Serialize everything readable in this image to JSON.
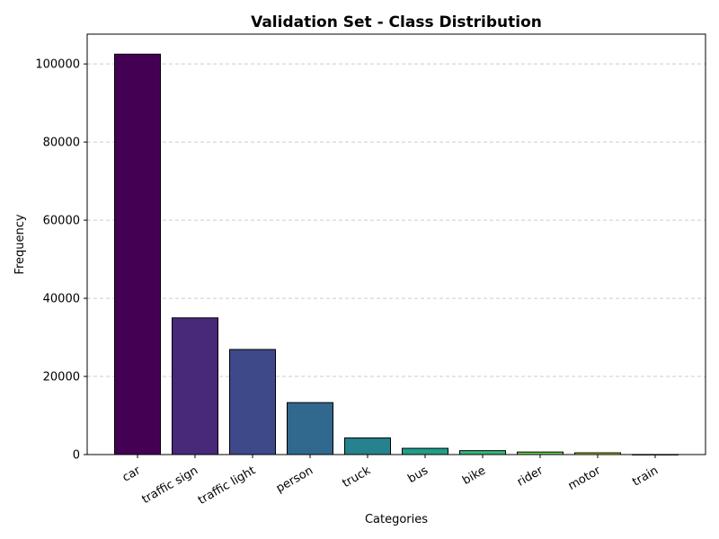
{
  "chart_data": {
    "type": "bar",
    "title": "Validation Set - Class Distribution",
    "xlabel": "Categories",
    "ylabel": "Frequency",
    "categories": [
      "car",
      "traffic sign",
      "traffic light",
      "person",
      "truck",
      "bus",
      "bike",
      "rider",
      "motor",
      "train"
    ],
    "values": [
      102500,
      35000,
      26900,
      13300,
      4250,
      1600,
      1000,
      650,
      450,
      15
    ],
    "colors": [
      "#440154",
      "#482878",
      "#3e4989",
      "#31688e",
      "#26828e",
      "#1f9e89",
      "#35b779",
      "#6ece58",
      "#b5de2b",
      "#fde725"
    ],
    "ylim": [
      0,
      107625
    ],
    "yticks": [
      0,
      20000,
      40000,
      60000,
      80000,
      100000
    ],
    "grid": "y-dashed",
    "legend": "none"
  }
}
